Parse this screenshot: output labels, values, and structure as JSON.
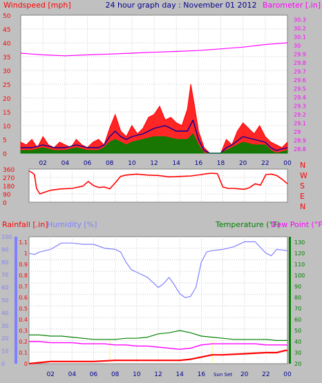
{
  "colors": {
    "background": "#c0c0c0",
    "wind": "#ff0000",
    "gust": "#ff0000",
    "wind_avg": "#008000",
    "wind_mean": "#0000a0",
    "barometer": "#ff00ff",
    "direction": "#ff0000",
    "rain": "#ff0000",
    "humidity": "#8080ff",
    "temperature": "#008000",
    "dewpoint": "#ff00ff",
    "title": "#00008b",
    "axis_blue": "#00008b"
  },
  "chart_data": [
    {
      "type": "line",
      "panel": "wind-and-pressure",
      "title": "24 hour graph day : November 01 2012",
      "ylabel_left": "Windspeed [mph]",
      "ylabel_right": "Barometer [.in]",
      "x_tick_labels": [
        "02",
        "04",
        "06",
        "08",
        "10",
        "12",
        "14",
        "16",
        "18",
        "20",
        "22",
        "00"
      ],
      "left_ylim": [
        0,
        50
      ],
      "left_ticks": [
        "0",
        "5",
        "10",
        "15",
        "20",
        "25",
        "30",
        "35",
        "40",
        "45",
        "50"
      ],
      "right_ylim": [
        28.75,
        30.35
      ],
      "right_ticks": [
        "28.8",
        "28.9",
        "29",
        "29.1",
        "29.2",
        "29.3",
        "29.4",
        "29.5",
        "29.6",
        "29.7",
        "29.8",
        "29.9",
        "30",
        "30.1",
        "30.2",
        "30.3"
      ],
      "x_range_hours": [
        0,
        24
      ],
      "grid": true,
      "series": [
        {
          "role": "barometer",
          "axis": "right",
          "x_hours": [
            0,
            1,
            2,
            4,
            6,
            8,
            10,
            12,
            14,
            16,
            18,
            20,
            22,
            23,
            24
          ],
          "values": [
            29.91,
            29.9,
            29.89,
            29.88,
            29.89,
            29.9,
            29.91,
            29.92,
            29.93,
            29.94,
            29.96,
            29.98,
            30.01,
            30.02,
            30.03
          ]
        },
        {
          "role": "gust",
          "axis": "left",
          "x_hours": [
            0,
            0.5,
            1,
            1.5,
            2,
            2.5,
            3,
            3.5,
            4,
            4.5,
            5,
            5.5,
            6,
            6.5,
            7,
            7.5,
            8,
            8.5,
            9,
            9.5,
            10,
            10.5,
            11,
            11.5,
            12,
            12.5,
            13,
            13.5,
            14,
            14.5,
            15,
            15.3,
            15.6,
            16,
            16.5,
            17,
            17.5,
            18,
            18.5,
            19,
            19.5,
            20,
            20.5,
            21,
            21.5,
            22,
            22.5,
            23,
            23.5,
            24
          ],
          "values": [
            4,
            3,
            5,
            2,
            6,
            3,
            2,
            4,
            3,
            2,
            5,
            3,
            2,
            4,
            5,
            3,
            9,
            14,
            8,
            6,
            10,
            7,
            9,
            13,
            14,
            17,
            12,
            13,
            11,
            10,
            16,
            25,
            18,
            8,
            2,
            0,
            0,
            0,
            5,
            3,
            8,
            11,
            9,
            7,
            10,
            6,
            4,
            3,
            2,
            4
          ]
        },
        {
          "role": "mean",
          "axis": "left",
          "x_hours": [
            0,
            1,
            2,
            3,
            4,
            5,
            6,
            7,
            7.5,
            8,
            8.5,
            9,
            9.5,
            10,
            11,
            12,
            13,
            14,
            15,
            15.5,
            16,
            16.5,
            17,
            18,
            18.5,
            19,
            20,
            21,
            22,
            22.5,
            23,
            24
          ],
          "values": [
            2,
            2,
            3,
            2,
            2,
            3,
            2,
            2,
            3,
            6,
            8,
            6,
            5,
            6,
            7,
            9,
            10,
            8,
            8,
            12,
            5,
            1,
            0,
            0,
            2,
            3,
            6,
            5,
            4,
            2,
            1,
            2
          ]
        },
        {
          "role": "average",
          "axis": "left",
          "x_hours": [
            0,
            1,
            2,
            3,
            4,
            5,
            6,
            7,
            7.5,
            8,
            8.5,
            9,
            9.5,
            10,
            11,
            12,
            13,
            14,
            15,
            15.5,
            16,
            16.5,
            17,
            18,
            18.5,
            19,
            20,
            21,
            22,
            22.5,
            23,
            24
          ],
          "values": [
            1,
            1,
            2,
            1,
            1,
            2,
            1,
            1,
            2,
            4,
            5,
            4,
            3,
            4,
            5,
            6,
            6,
            5,
            5,
            7,
            3,
            0,
            0,
            0,
            1,
            2,
            4,
            3,
            3,
            1,
            0,
            1
          ]
        }
      ]
    },
    {
      "type": "line",
      "panel": "wind-direction",
      "left_ticks": [
        "0",
        "90",
        "180",
        "270",
        "360"
      ],
      "right_labels": [
        "N",
        "W",
        "S",
        "E",
        "N"
      ],
      "ylim": [
        0,
        360
      ],
      "x_tick_labels": [],
      "grid": true,
      "series": [
        {
          "role": "direction",
          "x_hours": [
            0,
            0.3,
            0.5,
            0.7,
            1,
            1.5,
            2,
            3,
            4,
            5,
            5.5,
            6,
            6.5,
            7,
            7.5,
            8,
            8.5,
            9,
            10,
            11,
            12,
            13,
            14,
            15,
            16,
            16.5,
            17,
            17.5,
            18,
            18.5,
            19,
            19.5,
            20,
            20.5,
            21,
            21.5,
            22,
            22.5,
            23,
            23.5,
            24
          ],
          "values": [
            340,
            320,
            300,
            150,
            90,
            110,
            130,
            145,
            150,
            175,
            225,
            180,
            160,
            165,
            145,
            210,
            280,
            295,
            305,
            295,
            290,
            275,
            280,
            285,
            300,
            310,
            315,
            310,
            165,
            150,
            150,
            145,
            140,
            160,
            200,
            185,
            300,
            305,
            290,
            250,
            200
          ]
        }
      ]
    },
    {
      "type": "line",
      "panel": "rain-humidity-temperature",
      "ylabel_rain": "Rainfall [.in]",
      "ylabel_humidity": "Humidity [%]",
      "ylabel_temperature": "Temperature (°F)",
      "ylabel_dewpoint": "Dew Point (°F)",
      "rain_ylim": [
        0,
        1.15
      ],
      "rain_ticks": [
        "0",
        "0.1",
        "0.2",
        "0.3",
        "0.4",
        "0.5",
        "0.6",
        "0.7",
        "0.8",
        "0.9",
        "1",
        "1.1"
      ],
      "humidity_ylim": [
        0,
        100
      ],
      "humidity_ticks": [
        "0",
        "10",
        "20",
        "30",
        "40",
        "50",
        "60",
        "70",
        "80",
        "90",
        "100"
      ],
      "temp_ylim": [
        20,
        135
      ],
      "temp_ticks": [
        "20",
        "30",
        "40",
        "50",
        "60",
        "70",
        "80",
        "90",
        "100",
        "110",
        "120",
        "130"
      ],
      "x_tick_labels": [
        "02",
        "04",
        "06",
        "08",
        "10",
        "12",
        "14",
        "16",
        "Sun Set",
        "20",
        "22",
        "00"
      ],
      "grid": true,
      "sunset_hour": 17.0,
      "sunrise_hour": 7.5,
      "series": [
        {
          "role": "rainfall",
          "axis": "rain",
          "x_hours": [
            0,
            1,
            2,
            4,
            6,
            8,
            10,
            12,
            14,
            15,
            16,
            16.5,
            17,
            18,
            20,
            22,
            23,
            23.8,
            24
          ],
          "values": [
            0,
            0.01,
            0.02,
            0.02,
            0.02,
            0.03,
            0.03,
            0.03,
            0.03,
            0.04,
            0.06,
            0.07,
            0.08,
            0.08,
            0.09,
            0.1,
            0.1,
            0.12,
            0.12
          ]
        },
        {
          "role": "humidity",
          "axis": "humidity",
          "x_hours": [
            0,
            0.5,
            1,
            2,
            3,
            4,
            5,
            6,
            7,
            8,
            8.5,
            9,
            9.5,
            10,
            10.5,
            11,
            11.5,
            12,
            12.5,
            13,
            13.5,
            14,
            14.5,
            15,
            15.5,
            16,
            16.5,
            17,
            18,
            19,
            20,
            21,
            22,
            22.5,
            23,
            24
          ],
          "values": [
            87,
            86,
            88,
            90,
            95,
            95,
            94,
            94,
            91,
            90,
            88,
            80,
            74,
            72,
            70,
            68,
            64,
            60,
            63,
            68,
            62,
            55,
            52,
            53,
            60,
            80,
            88,
            89,
            90,
            92,
            96,
            96,
            87,
            85,
            90,
            89
          ]
        },
        {
          "role": "temperature",
          "axis": "temp",
          "x_hours": [
            0,
            1,
            2,
            3,
            4,
            5,
            6,
            7,
            8,
            9,
            10,
            11,
            12,
            13,
            14,
            15,
            16,
            17,
            18,
            19,
            20,
            21,
            22,
            23,
            24
          ],
          "values": [
            46,
            46,
            45,
            45,
            44,
            43,
            42,
            42,
            42,
            43,
            43,
            44,
            47,
            48,
            50,
            48,
            45,
            44,
            43,
            42,
            42,
            42,
            42,
            41,
            41
          ]
        },
        {
          "role": "dewpoint",
          "axis": "temp",
          "x_hours": [
            0,
            1,
            2,
            3,
            4,
            5,
            6,
            7,
            8,
            9,
            10,
            11,
            12,
            13,
            14,
            15,
            16,
            17,
            18,
            19,
            20,
            21,
            22,
            23,
            24
          ],
          "values": [
            40,
            40,
            39,
            39,
            39,
            38,
            38,
            38,
            37,
            37,
            36,
            36,
            35,
            34,
            33,
            34,
            37,
            38,
            38,
            38,
            38,
            38,
            37,
            37,
            37
          ]
        }
      ]
    }
  ]
}
